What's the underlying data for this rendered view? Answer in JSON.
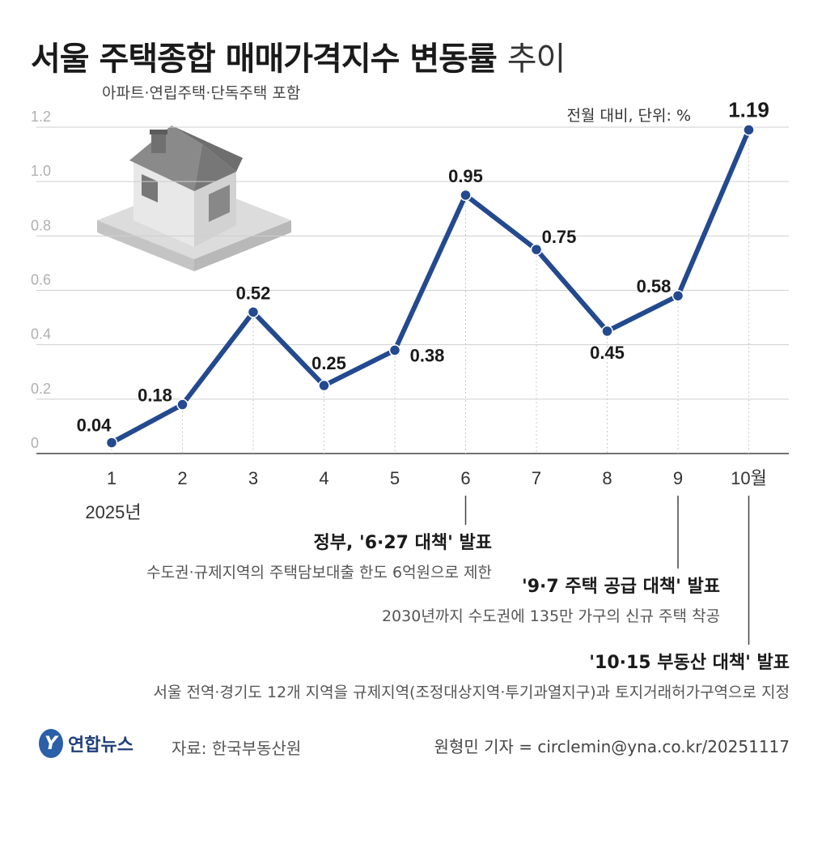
{
  "title": {
    "main": "서울 주택종합 매매가격지수 변동률",
    "suffix": "추이"
  },
  "subtitle": "아파트·연립주택·단독주택 포함",
  "unit_note": "전월 대비, 단위: %",
  "chart_data": {
    "type": "line",
    "categories": [
      "1",
      "2",
      "3",
      "4",
      "5",
      "6",
      "7",
      "8",
      "9",
      "10월"
    ],
    "year_label": "2025년",
    "series": [
      {
        "values": [
          0.04,
          0.18,
          0.52,
          0.25,
          0.38,
          0.95,
          0.75,
          0.45,
          0.58,
          1.19
        ]
      }
    ],
    "data_labels": [
      "0.04",
      "0.18",
      "0.52",
      "0.25",
      "0.38",
      "0.95",
      "0.75",
      "0.45",
      "0.58",
      "1.19"
    ],
    "yticks": [
      "0",
      "0.2",
      "0.4",
      "0.6",
      "0.8",
      "1.0",
      "1.2"
    ],
    "ylim": [
      0,
      1.2
    ],
    "grid": true,
    "line_color": "#23498f"
  },
  "annotations": [
    {
      "month": "6",
      "head": "정부, '6·27 대책' 발표",
      "desc": "수도권·규제지역의 주택담보대출 한도 6억원으로 제한"
    },
    {
      "month": "9",
      "head": "'9·7 주택 공급 대책' 발표",
      "desc": "2030년까지 수도권에 135만 가구의 신규 주택 착공"
    },
    {
      "month": "10월",
      "head": "'10·15 부동산 대책' 발표",
      "desc": "서울 전역·경기도 12개 지역을 규제지역(조정대상지역·투기과열지구)과 토지거래허가구역으로 지정"
    }
  ],
  "footer": {
    "logo_letter": "Y",
    "brand": "연합뉴스",
    "source": "자료: 한국부동산원",
    "credit": "원형민 기자 = circlemin@yna.co.kr/20251117"
  },
  "colors": {
    "accent": "#23498f",
    "grid": "#d0d0d0",
    "brand": "#2b5fa8"
  }
}
